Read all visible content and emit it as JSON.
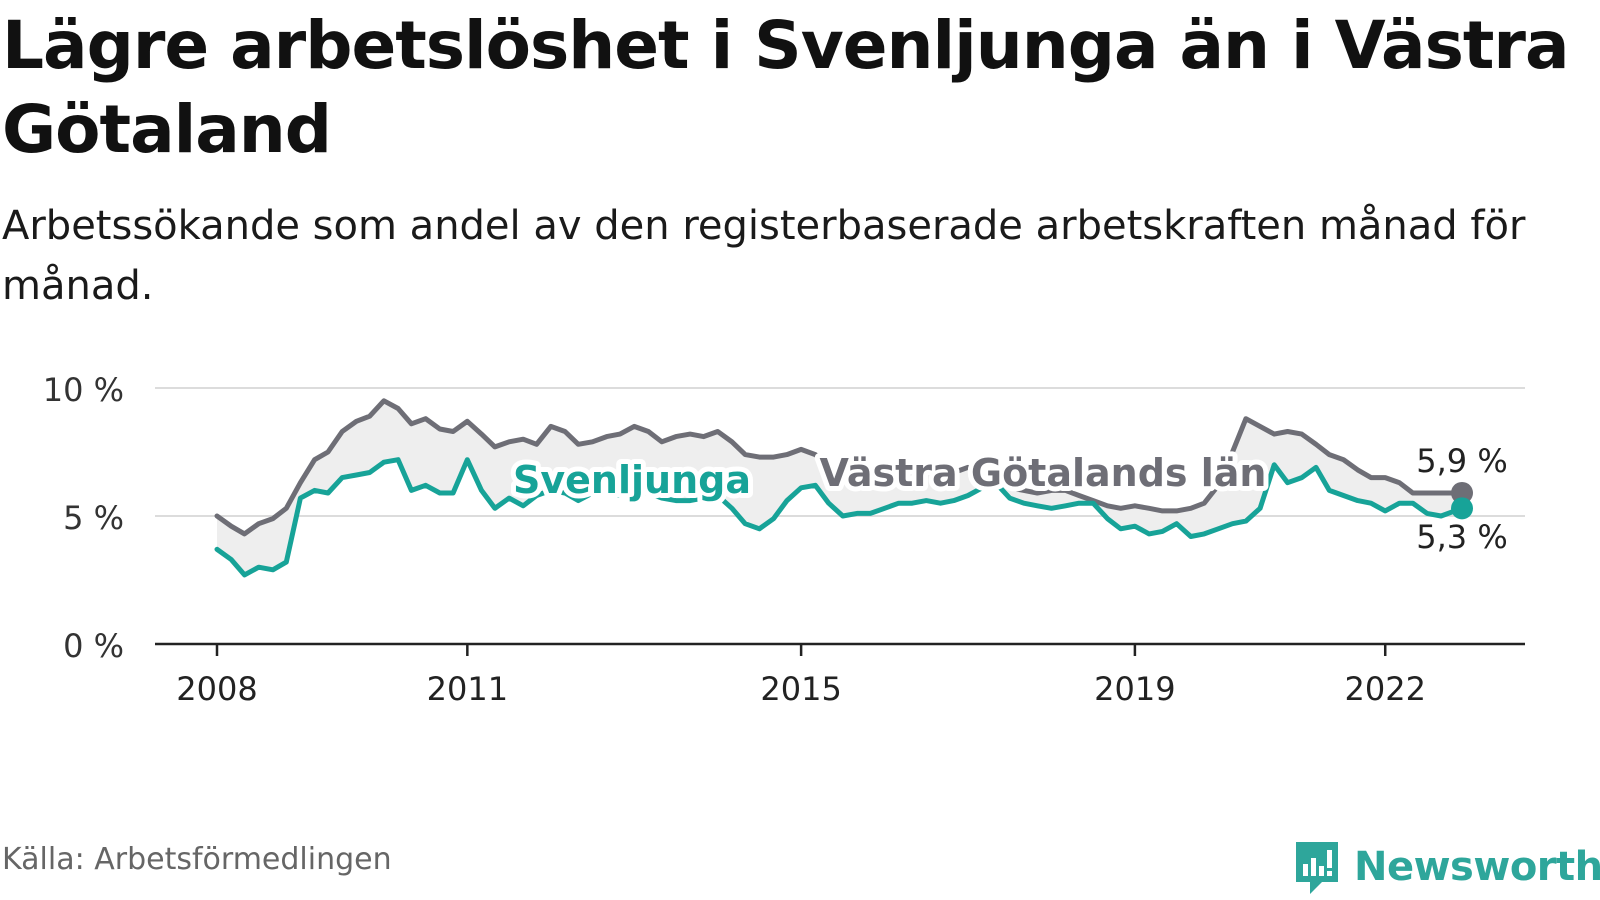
{
  "header": {
    "title": "Lägre arbetslöshet i Svenljunga än i Västra Götaland",
    "subtitle": "Arbetssökande som andel av den registerbaserade arbetskraften månad för månad."
  },
  "footer": {
    "source": "Källa: Arbetsförmedlingen",
    "brand": "Newsworthy"
  },
  "colors": {
    "svenljunga": "#17a398",
    "region": "#6e6e76",
    "band": "#eeeeee",
    "grid": "#dcdcdc"
  },
  "chart_data": {
    "type": "line",
    "title": "Lägre arbetslöshet i Svenljunga än i Västra Götaland",
    "ylabel": "",
    "xlabel": "",
    "ylim": [
      0,
      10
    ],
    "xlim": [
      2007.3,
      2023.7
    ],
    "yticks": [
      0,
      5,
      10
    ],
    "ytick_labels": [
      "0 %",
      "5 %",
      "10 %"
    ],
    "xticks": [
      2008,
      2011,
      2015,
      2019,
      2022
    ],
    "xtick_labels": [
      "2008",
      "2011",
      "2015",
      "2019",
      "2022"
    ],
    "grid": true,
    "fill_between_series": true,
    "series": [
      {
        "name": "Västra Götalands län",
        "label": "Västra Götalands län",
        "end_label": "5,9 %",
        "x": [
          2008.0,
          2008.17,
          2008.33,
          2008.5,
          2008.67,
          2008.83,
          2009.0,
          2009.17,
          2009.33,
          2009.5,
          2009.67,
          2009.83,
          2010.0,
          2010.17,
          2010.33,
          2010.5,
          2010.67,
          2010.83,
          2011.0,
          2011.17,
          2011.33,
          2011.5,
          2011.67,
          2011.83,
          2012.0,
          2012.17,
          2012.33,
          2012.5,
          2012.67,
          2012.83,
          2013.0,
          2013.17,
          2013.33,
          2013.5,
          2013.67,
          2013.83,
          2014.0,
          2014.17,
          2014.33,
          2014.5,
          2014.67,
          2014.83,
          2015.0,
          2015.17,
          2015.33,
          2015.5,
          2015.67,
          2015.83,
          2016.0,
          2016.17,
          2016.33,
          2016.5,
          2016.67,
          2016.83,
          2017.0,
          2017.17,
          2017.33,
          2017.5,
          2017.67,
          2017.83,
          2018.0,
          2018.17,
          2018.33,
          2018.5,
          2018.67,
          2018.83,
          2019.0,
          2019.17,
          2019.33,
          2019.5,
          2019.67,
          2019.83,
          2020.0,
          2020.17,
          2020.33,
          2020.5,
          2020.67,
          2020.83,
          2021.0,
          2021.17,
          2021.33,
          2021.5,
          2021.67,
          2021.83,
          2022.0,
          2022.17,
          2022.33,
          2022.5,
          2022.67,
          2022.92
        ],
        "values": [
          5.0,
          4.6,
          4.3,
          4.7,
          4.9,
          5.3,
          6.3,
          7.2,
          7.5,
          8.3,
          8.7,
          8.9,
          9.5,
          9.2,
          8.6,
          8.8,
          8.4,
          8.3,
          8.7,
          8.2,
          7.7,
          7.9,
          8.0,
          7.8,
          8.5,
          8.3,
          7.8,
          7.9,
          8.1,
          8.2,
          8.5,
          8.3,
          7.9,
          8.1,
          8.2,
          8.1,
          8.3,
          7.9,
          7.4,
          7.3,
          7.3,
          7.4,
          7.6,
          7.4,
          6.9,
          6.6,
          6.8,
          6.8,
          7.0,
          6.9,
          6.7,
          6.8,
          6.6,
          6.7,
          6.9,
          6.7,
          6.4,
          6.1,
          6.0,
          5.9,
          6.0,
          6.0,
          5.8,
          5.6,
          5.4,
          5.3,
          5.4,
          5.3,
          5.2,
          5.2,
          5.3,
          5.5,
          6.2,
          7.5,
          8.8,
          8.5,
          8.2,
          8.3,
          8.2,
          7.8,
          7.4,
          7.2,
          6.8,
          6.5,
          6.5,
          6.3,
          5.9,
          5.9,
          5.9,
          5.9
        ]
      },
      {
        "name": "Svenljunga",
        "label": "Svenljunga",
        "end_label": "5,3 %",
        "x": [
          2008.0,
          2008.17,
          2008.33,
          2008.5,
          2008.67,
          2008.83,
          2009.0,
          2009.17,
          2009.33,
          2009.5,
          2009.67,
          2009.83,
          2010.0,
          2010.17,
          2010.33,
          2010.5,
          2010.67,
          2010.83,
          2011.0,
          2011.17,
          2011.33,
          2011.5,
          2011.67,
          2011.83,
          2012.0,
          2012.17,
          2012.33,
          2012.5,
          2012.67,
          2012.83,
          2013.0,
          2013.17,
          2013.33,
          2013.5,
          2013.67,
          2013.83,
          2014.0,
          2014.17,
          2014.33,
          2014.5,
          2014.67,
          2014.83,
          2015.0,
          2015.17,
          2015.33,
          2015.5,
          2015.67,
          2015.83,
          2016.0,
          2016.17,
          2016.33,
          2016.5,
          2016.67,
          2016.83,
          2017.0,
          2017.17,
          2017.33,
          2017.5,
          2017.67,
          2017.83,
          2018.0,
          2018.17,
          2018.33,
          2018.5,
          2018.67,
          2018.83,
          2019.0,
          2019.17,
          2019.33,
          2019.5,
          2019.67,
          2019.83,
          2020.0,
          2020.17,
          2020.33,
          2020.5,
          2020.67,
          2020.83,
          2021.0,
          2021.17,
          2021.33,
          2021.5,
          2021.67,
          2021.83,
          2022.0,
          2022.17,
          2022.33,
          2022.5,
          2022.67,
          2022.92
        ],
        "values": [
          3.7,
          3.3,
          2.7,
          3.0,
          2.9,
          3.2,
          5.7,
          6.0,
          5.9,
          6.5,
          6.6,
          6.7,
          7.1,
          7.2,
          6.0,
          6.2,
          5.9,
          5.9,
          7.2,
          6.0,
          5.3,
          5.7,
          5.4,
          5.8,
          6.0,
          5.9,
          5.6,
          5.9,
          6.0,
          5.8,
          6.0,
          5.9,
          5.7,
          5.6,
          5.6,
          5.7,
          5.8,
          5.3,
          4.7,
          4.5,
          4.9,
          5.6,
          6.1,
          6.2,
          5.5,
          5.0,
          5.1,
          5.1,
          5.3,
          5.5,
          5.5,
          5.6,
          5.5,
          5.6,
          5.8,
          6.1,
          6.3,
          5.7,
          5.5,
          5.4,
          5.3,
          5.4,
          5.5,
          5.5,
          4.9,
          4.5,
          4.6,
          4.3,
          4.4,
          4.7,
          4.2,
          4.3,
          4.5,
          4.7,
          4.8,
          5.3,
          7.0,
          6.3,
          6.5,
          6.9,
          6.0,
          5.8,
          5.6,
          5.5,
          5.2,
          5.5,
          5.5,
          5.1,
          5.0,
          5.3
        ]
      }
    ]
  }
}
